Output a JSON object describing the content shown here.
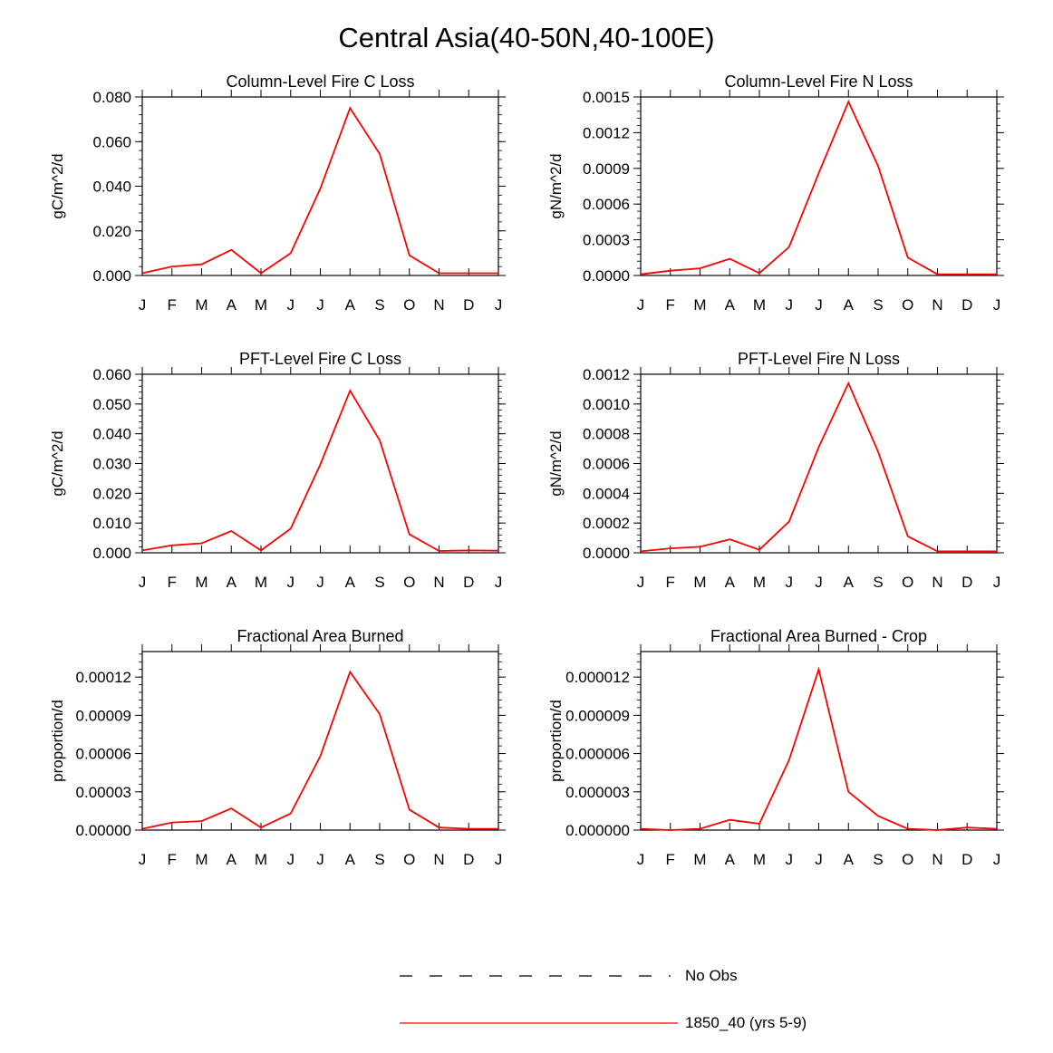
{
  "figure": {
    "title": "Central Asia(40-50N,40-100E)",
    "months": [
      "J",
      "F",
      "M",
      "A",
      "M",
      "J",
      "J",
      "A",
      "S",
      "O",
      "N",
      "D",
      "J"
    ],
    "line_color": "#ff0000",
    "obs_color": "#000000"
  },
  "legend": {
    "obs_label": "No Obs",
    "model_label": "1850_40 (yrs 5-9)"
  },
  "chart_data": [
    {
      "type": "line",
      "title": "Column-Level Fire C Loss",
      "ylabel": "gC/m^2/d",
      "xlabel": "",
      "ylim": [
        0,
        0.08
      ],
      "yticks": [
        0,
        0.02,
        0.04,
        0.06,
        0.08
      ],
      "ytick_labels": [
        "0.000",
        "0.020",
        "0.040",
        "0.060",
        "0.080"
      ],
      "x": [
        0,
        1,
        2,
        3,
        4,
        5,
        6,
        7,
        8,
        9,
        10,
        11,
        12
      ],
      "series": [
        {
          "name": "1850_40 (yrs 5-9)",
          "values": [
            0.001,
            0.004,
            0.005,
            0.0115,
            0.001,
            0.01,
            0.039,
            0.075,
            0.0545,
            0.009,
            0.001,
            0.001,
            0.001
          ]
        }
      ]
    },
    {
      "type": "line",
      "title": "Column-Level Fire N Loss",
      "ylabel": "gN/m^2/d",
      "xlabel": "",
      "ylim": [
        0,
        0.0015
      ],
      "yticks": [
        0,
        0.0003,
        0.0006,
        0.0009,
        0.0012,
        0.0015
      ],
      "ytick_labels": [
        "0.0000",
        "0.0003",
        "0.0006",
        "0.0009",
        "0.0012",
        "0.0015"
      ],
      "x": [
        0,
        1,
        2,
        3,
        4,
        5,
        6,
        7,
        8,
        9,
        10,
        11,
        12
      ],
      "series": [
        {
          "name": "1850_40 (yrs 5-9)",
          "values": [
            1e-05,
            4e-05,
            6e-05,
            0.00014,
            2e-05,
            0.00024,
            0.00086,
            0.00146,
            0.00092,
            0.00015,
            1e-05,
            1e-05,
            1e-05
          ]
        }
      ]
    },
    {
      "type": "line",
      "title": "PFT-Level Fire C Loss",
      "ylabel": "gC/m^2/d",
      "xlabel": "",
      "ylim": [
        0,
        0.06
      ],
      "yticks": [
        0,
        0.01,
        0.02,
        0.03,
        0.04,
        0.05,
        0.06
      ],
      "ytick_labels": [
        "0.000",
        "0.010",
        "0.020",
        "0.030",
        "0.040",
        "0.050",
        "0.060"
      ],
      "x": [
        0,
        1,
        2,
        3,
        4,
        5,
        6,
        7,
        8,
        9,
        10,
        11,
        12
      ],
      "series": [
        {
          "name": "1850_40 (yrs 5-9)",
          "values": [
            0.0008,
            0.0025,
            0.0032,
            0.0073,
            0.0008,
            0.0081,
            0.0297,
            0.0545,
            0.0378,
            0.0062,
            0.0006,
            0.0008,
            0.0007
          ]
        }
      ]
    },
    {
      "type": "line",
      "title": "PFT-Level Fire N Loss",
      "ylabel": "gN/m^2/d",
      "xlabel": "",
      "ylim": [
        0,
        0.0012
      ],
      "yticks": [
        0,
        0.0002,
        0.0004,
        0.0006,
        0.0008,
        0.001,
        0.0012
      ],
      "ytick_labels": [
        "0.0000",
        "0.0002",
        "0.0004",
        "0.0006",
        "0.0008",
        "0.0010",
        "0.0012"
      ],
      "x": [
        0,
        1,
        2,
        3,
        4,
        5,
        6,
        7,
        8,
        9,
        10,
        11,
        12
      ],
      "series": [
        {
          "name": "1850_40 (yrs 5-9)",
          "values": [
            1e-05,
            3e-05,
            4e-05,
            9e-05,
            2e-05,
            0.00021,
            0.00071,
            0.00114,
            0.00068,
            0.00011,
            1e-05,
            1e-05,
            1e-05
          ]
        }
      ]
    },
    {
      "type": "line",
      "title": "Fractional Area Burned",
      "ylabel": "proportion/d",
      "xlabel": "",
      "ylim": [
        0,
        0.00014
      ],
      "yticks": [
        0,
        3e-05,
        6e-05,
        9e-05,
        0.00012
      ],
      "ytick_labels": [
        "0.00000",
        "0.00003",
        "0.00006",
        "0.00009",
        "0.00012"
      ],
      "x": [
        0,
        1,
        2,
        3,
        4,
        5,
        6,
        7,
        8,
        9,
        10,
        11,
        12
      ],
      "series": [
        {
          "name": "1850_40 (yrs 5-9)",
          "values": [
            1e-06,
            6e-06,
            7e-06,
            1.7e-05,
            2e-06,
            1.3e-05,
            5.8e-05,
            0.000124,
            9.1e-05,
            1.6e-05,
            2e-06,
            1e-06,
            1e-06
          ]
        }
      ]
    },
    {
      "type": "line",
      "title": "Fractional Area Burned - Crop",
      "ylabel": "proportion/d",
      "xlabel": "",
      "ylim": [
        0,
        1.4e-05
      ],
      "yticks": [
        0,
        3e-06,
        6e-06,
        9e-06,
        1.2e-05
      ],
      "ytick_labels": [
        "0.000000",
        "0.000003",
        "0.000006",
        "0.000009",
        "0.000012"
      ],
      "x": [
        0,
        1,
        2,
        3,
        4,
        5,
        6,
        7,
        8,
        9,
        10,
        11,
        12
      ],
      "series": [
        {
          "name": "1850_40 (yrs 5-9)",
          "values": [
            1e-07,
            0.0,
            1e-07,
            8e-07,
            5e-07,
            5.5e-06,
            1.26e-05,
            3e-06,
            1.1e-06,
            1e-07,
            0.0,
            2e-07,
            1e-07
          ]
        }
      ]
    }
  ]
}
